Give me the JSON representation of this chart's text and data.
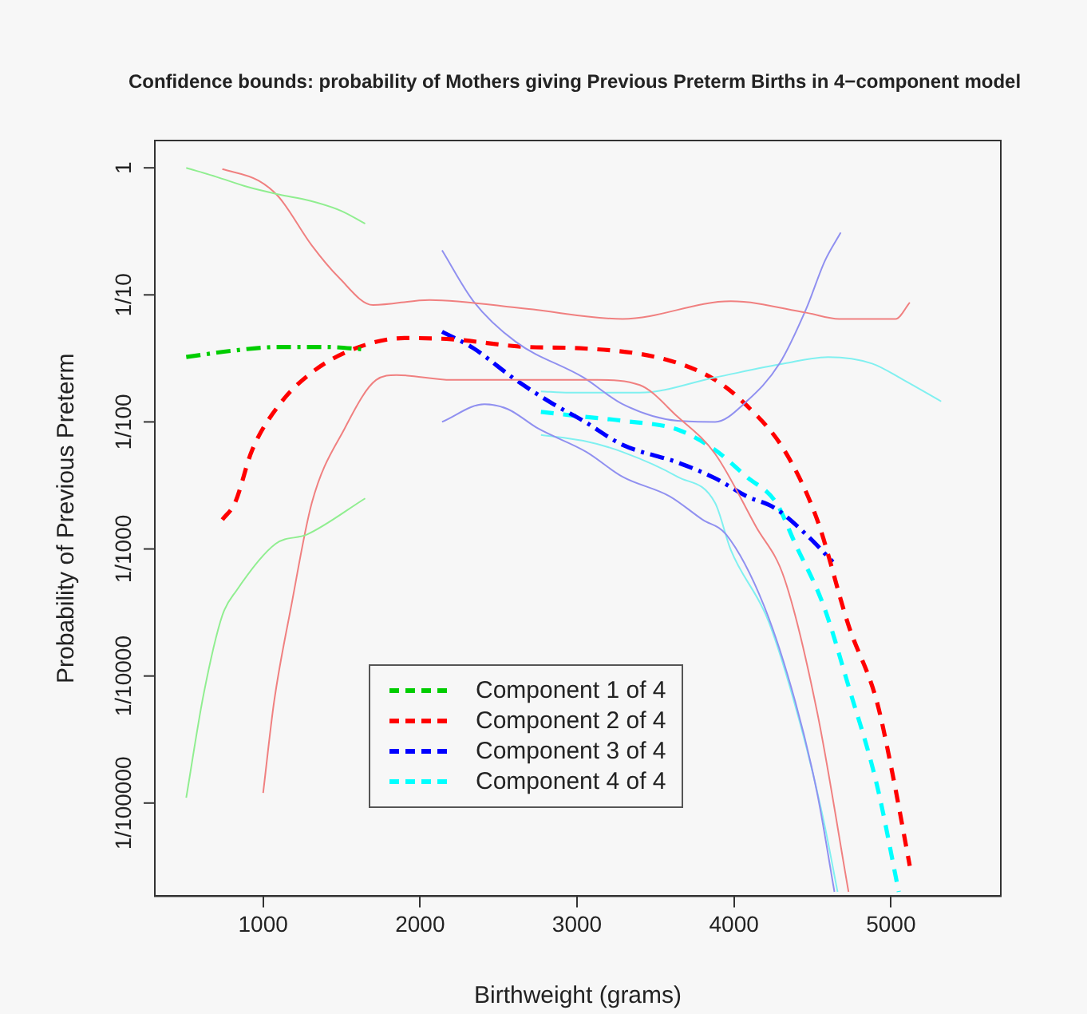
{
  "chart_data": {
    "type": "line",
    "title": "Confidence bounds: probability of Mothers giving Previous Preterm Births in 4−component model",
    "xlabel": "Birthweight (grams)",
    "ylabel": "Probability of Previous Preterm",
    "log": "y",
    "legend": "bottom left",
    "xlim": [
      310,
      5700
    ],
    "xticks": [
      1000,
      2000,
      3000,
      4000,
      5000
    ],
    "ylim": [
      1.85e-06,
      1.64
    ],
    "yticks": [
      1,
      {
        "value": 0.1,
        "label": "1/10"
      },
      {
        "value": 0.01,
        "label": "1/100"
      },
      {
        "value": 0.001,
        "label": "1/1000"
      },
      {
        "value": 0.0001,
        "label": "1/10000"
      },
      {
        "value": 1e-05,
        "label": "1/100000"
      }
    ],
    "series": [
      {
        "color": "#90ee90",
        "line_style": "solid",
        "x": [
          510,
          700,
          900,
          1100,
          1300,
          1500,
          1650
        ],
        "values": [
          1,
          0.851,
          0.708,
          0.617,
          0.55,
          0.457,
          0.363
        ]
      },
      {
        "color": "#90ee90",
        "line_style": "solid",
        "x": [
          510,
          620,
          740,
          830,
          1080,
          1280,
          1650
        ],
        "values": [
          1.1e-05,
          7.1e-05,
          0.0003,
          0.00047,
          0.0011,
          0.0013,
          0.0025
        ]
      },
      {
        "color": "#f08080",
        "line_style": "solid",
        "x": [
          740,
          970,
          1100,
          1310,
          1480,
          1700,
          2060,
          2680,
          3290,
          3980,
          4460,
          4670,
          5030,
          5120
        ],
        "values": [
          0.977,
          0.794,
          0.589,
          0.245,
          0.138,
          0.0832,
          0.0912,
          0.0776,
          0.0646,
          0.0891,
          0.0724,
          0.0646,
          0.0646,
          0.0871
        ]
      },
      {
        "color": "#f08080",
        "line_style": "solid",
        "x": [
          1000,
          1070,
          1180,
          1310,
          1520,
          1720,
          1850,
          2200,
          3020,
          3130,
          3400,
          3640,
          3880,
          4140,
          4320,
          4530,
          4730
        ],
        "values": [
          1.2e-05,
          6.3e-05,
          0.00036,
          0.0023,
          0.0089,
          0.0214,
          0.0234,
          0.0214,
          0.0214,
          0.0214,
          0.0195,
          0.011,
          0.0056,
          0.0015,
          0.00059,
          5.2e-05,
          2e-06
        ]
      },
      {
        "color": "#9090f0",
        "line_style": "solid",
        "x": [
          2140,
          2340,
          2610,
          3040,
          3290,
          3640,
          3880,
          4080,
          4290,
          4460,
          4580,
          4680
        ],
        "values": [
          0.224,
          0.0891,
          0.0427,
          0.0224,
          0.0138,
          0.0102,
          0.01,
          0.0145,
          0.0288,
          0.0776,
          0.186,
          0.309
        ]
      },
      {
        "color": "#9090f0",
        "line_style": "solid",
        "x": [
          2140,
          2410,
          2560,
          2750,
          3060,
          3290,
          3590,
          3800,
          3950,
          4190,
          4390,
          4530,
          4640
        ],
        "values": [
          0.01,
          0.0138,
          0.0126,
          0.0089,
          0.0058,
          0.0037,
          0.0026,
          0.0017,
          0.0013,
          0.00036,
          6.3e-05,
          1.2e-05,
          2e-06
        ]
      },
      {
        "color": "#80f0f0",
        "line_style": "solid",
        "x": [
          2770,
          2950,
          3400,
          3880,
          4320,
          4600,
          4880,
          5080,
          5320
        ],
        "values": [
          0.0174,
          0.017,
          0.017,
          0.0224,
          0.0288,
          0.0324,
          0.0288,
          0.0214,
          0.0145
        ]
      },
      {
        "color": "#80f0f0",
        "line_style": "solid",
        "x": [
          2770,
          3040,
          3290,
          3640,
          3880,
          3980,
          4220,
          4420,
          4570,
          4660
        ],
        "values": [
          0.0079,
          0.0071,
          0.0058,
          0.0037,
          0.0023,
          0.00098,
          0.00027,
          4.3e-05,
          7.4e-06,
          2e-06
        ]
      },
      {
        "name": "Component 1 of 4",
        "color": "#00cd00",
        "line_style": "dashdot",
        "x": [
          510,
          800,
          1100,
          1400,
          1650
        ],
        "values": [
          0.0324,
          0.0363,
          0.0389,
          0.0389,
          0.0372
        ]
      },
      {
        "name": "Component 2 of 4",
        "color": "#ff0000",
        "line_style": "dashed",
        "x": [
          740,
          820,
          930,
          1100,
          1310,
          1590,
          1900,
          2200,
          2680,
          3020,
          3570,
          3880,
          4080,
          4320,
          4530,
          4730,
          4910,
          5010,
          5120
        ],
        "values": [
          0.0017,
          0.0023,
          0.006,
          0.0135,
          0.0245,
          0.038,
          0.0457,
          0.0447,
          0.0389,
          0.038,
          0.0309,
          0.0214,
          0.0135,
          0.006,
          0.0017,
          0.00025,
          6.3e-05,
          1.7e-05,
          3.2e-06
        ]
      },
      {
        "name": "Component 3 of 4",
        "color": "#0000ff",
        "line_style": "dashdot",
        "x": [
          2140,
          2340,
          2610,
          2850,
          3040,
          3290,
          3640,
          3880,
          4080,
          4260,
          4460,
          4630
        ],
        "values": [
          0.0513,
          0.038,
          0.0214,
          0.0138,
          0.0102,
          0.0066,
          0.0048,
          0.0036,
          0.0026,
          0.0021,
          0.0013,
          0.00079
        ]
      },
      {
        "name": "Component 4 of 4",
        "color": "#00ffff",
        "line_style": "dashed",
        "x": [
          2770,
          3040,
          3290,
          3640,
          3880,
          4080,
          4270,
          4390,
          4570,
          4730,
          4910,
          5050
        ],
        "values": [
          0.012,
          0.011,
          0.0102,
          0.0087,
          0.006,
          0.0037,
          0.0023,
          0.0011,
          0.00036,
          8.3e-05,
          1.4e-05,
          2e-06
        ]
      }
    ]
  }
}
